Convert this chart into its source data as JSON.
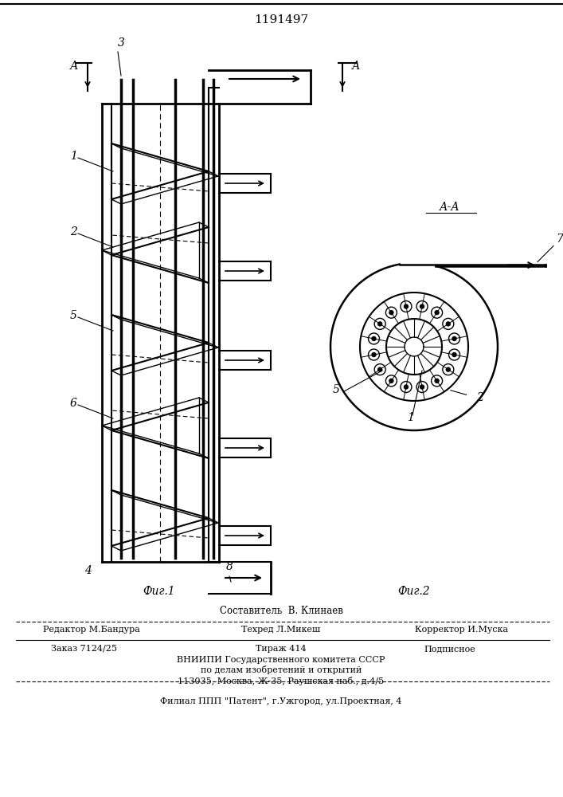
{
  "patent_number": "1191497",
  "bg_color": "#ffffff",
  "line_color": "#000000",
  "fig1_label": "Фиг.1",
  "fig2_label": "Фиг.2",
  "aa_label": "А-А",
  "footer_line1": "Составитель  В. Клинаев",
  "footer_line2_left": "Редактор М.Бандура",
  "footer_line2_mid": "Техред Л.Микеш",
  "footer_line2_right": "Корректор И.Муска",
  "footer_line3_left": "Заказ 7124/25",
  "footer_line3_mid": "Тираж 414",
  "footer_line3_right": "Подписное",
  "footer_line4": "ВНИИПИ Государственного комитета СССР",
  "footer_line5": "по делам изобретений и открытий",
  "footer_line6": "113035, Москва, Ж-35, Раушская наб., д.4/5",
  "footer_line7": "Филиал ППП \"Патент\", г.Ужгород, ул.Проектная, 4"
}
